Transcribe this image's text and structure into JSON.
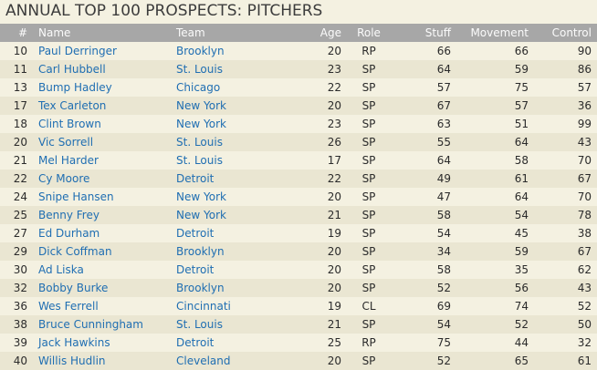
{
  "title": "ANNUAL TOP 100 PROSPECTS: PITCHERS",
  "columns": {
    "rank": "#",
    "name": "Name",
    "team": "Team",
    "age": "Age",
    "role": "Role",
    "stuff": "Stuff",
    "movement": "Movement",
    "control": "Control"
  },
  "rows": [
    {
      "rank": "10",
      "name": "Paul Derringer",
      "team": "Brooklyn",
      "age": "20",
      "role": "RP",
      "stuff": "66",
      "movement": "66",
      "control": "90"
    },
    {
      "rank": "11",
      "name": "Carl Hubbell",
      "team": "St. Louis",
      "age": "23",
      "role": "SP",
      "stuff": "64",
      "movement": "59",
      "control": "86"
    },
    {
      "rank": "13",
      "name": "Bump Hadley",
      "team": "Chicago",
      "age": "22",
      "role": "SP",
      "stuff": "57",
      "movement": "75",
      "control": "57"
    },
    {
      "rank": "17",
      "name": "Tex Carleton",
      "team": "New York",
      "age": "20",
      "role": "SP",
      "stuff": "67",
      "movement": "57",
      "control": "36"
    },
    {
      "rank": "18",
      "name": "Clint Brown",
      "team": "New York",
      "age": "23",
      "role": "SP",
      "stuff": "63",
      "movement": "51",
      "control": "99"
    },
    {
      "rank": "20",
      "name": "Vic Sorrell",
      "team": "St. Louis",
      "age": "26",
      "role": "SP",
      "stuff": "55",
      "movement": "64",
      "control": "43"
    },
    {
      "rank": "21",
      "name": "Mel Harder",
      "team": "St. Louis",
      "age": "17",
      "role": "SP",
      "stuff": "64",
      "movement": "58",
      "control": "70"
    },
    {
      "rank": "22",
      "name": "Cy Moore",
      "team": "Detroit",
      "age": "22",
      "role": "SP",
      "stuff": "49",
      "movement": "61",
      "control": "67"
    },
    {
      "rank": "24",
      "name": "Snipe Hansen",
      "team": "New York",
      "age": "20",
      "role": "SP",
      "stuff": "47",
      "movement": "64",
      "control": "70"
    },
    {
      "rank": "25",
      "name": "Benny Frey",
      "team": "New York",
      "age": "21",
      "role": "SP",
      "stuff": "58",
      "movement": "54",
      "control": "78"
    },
    {
      "rank": "27",
      "name": "Ed Durham",
      "team": "Detroit",
      "age": "19",
      "role": "SP",
      "stuff": "54",
      "movement": "45",
      "control": "38"
    },
    {
      "rank": "29",
      "name": "Dick Coffman",
      "team": "Brooklyn",
      "age": "20",
      "role": "SP",
      "stuff": "34",
      "movement": "59",
      "control": "67"
    },
    {
      "rank": "30",
      "name": "Ad Liska",
      "team": "Detroit",
      "age": "20",
      "role": "SP",
      "stuff": "58",
      "movement": "35",
      "control": "62"
    },
    {
      "rank": "32",
      "name": "Bobby Burke",
      "team": "Brooklyn",
      "age": "20",
      "role": "SP",
      "stuff": "52",
      "movement": "56",
      "control": "43"
    },
    {
      "rank": "36",
      "name": "Wes Ferrell",
      "team": "Cincinnati",
      "age": "19",
      "role": "CL",
      "stuff": "69",
      "movement": "74",
      "control": "52"
    },
    {
      "rank": "38",
      "name": "Bruce Cunningham",
      "team": "St. Louis",
      "age": "21",
      "role": "SP",
      "stuff": "54",
      "movement": "52",
      "control": "50"
    },
    {
      "rank": "39",
      "name": "Jack Hawkins",
      "team": "Detroit",
      "age": "25",
      "role": "RP",
      "stuff": "75",
      "movement": "44",
      "control": "32"
    },
    {
      "rank": "40",
      "name": "Willis Hudlin",
      "team": "Cleveland",
      "age": "20",
      "role": "SP",
      "stuff": "52",
      "movement": "65",
      "control": "61"
    }
  ],
  "colors": {
    "background": "#f4f1e1",
    "row_alt": "#eae6d2",
    "header_bg": "#a7a7a7",
    "header_text": "#fbfbfb",
    "link": "#1f6eb2"
  }
}
